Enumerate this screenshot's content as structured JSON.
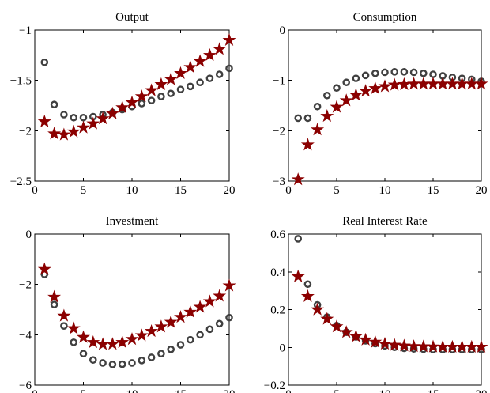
{
  "colors": {
    "circle_series": "#404040",
    "star_series": "#8b0000"
  },
  "chart_data": [
    {
      "type": "scatter",
      "title": "Output",
      "xlabel": "",
      "ylabel": "",
      "xlim": [
        0,
        20
      ],
      "ylim": [
        -2.5,
        -1
      ],
      "xticks": [
        0,
        5,
        10,
        15,
        20
      ],
      "yticks": [
        -2.5,
        -2,
        -1.5,
        -1
      ],
      "xtick_labels": [
        "0",
        "5",
        "10",
        "15",
        "20"
      ],
      "ytick_labels": [
        "−2.5",
        "−2",
        "−1.5",
        "−1"
      ],
      "grid": false,
      "x": [
        1,
        2,
        3,
        4,
        5,
        6,
        7,
        8,
        9,
        10,
        11,
        12,
        13,
        14,
        15,
        16,
        17,
        18,
        19,
        20
      ],
      "series": [
        {
          "marker": "circle",
          "values": [
            -1.32,
            -1.74,
            -1.84,
            -1.87,
            -1.87,
            -1.86,
            -1.84,
            -1.82,
            -1.79,
            -1.76,
            -1.73,
            -1.7,
            -1.66,
            -1.63,
            -1.59,
            -1.56,
            -1.52,
            -1.48,
            -1.44,
            -1.38
          ]
        },
        {
          "marker": "star",
          "values": [
            -1.91,
            -2.03,
            -2.04,
            -2.01,
            -1.97,
            -1.93,
            -1.88,
            -1.83,
            -1.77,
            -1.72,
            -1.66,
            -1.6,
            -1.54,
            -1.49,
            -1.43,
            -1.37,
            -1.31,
            -1.25,
            -1.19,
            -1.1
          ]
        }
      ]
    },
    {
      "type": "scatter",
      "title": "Consumption",
      "xlabel": "",
      "ylabel": "",
      "xlim": [
        0,
        20
      ],
      "ylim": [
        -3,
        0
      ],
      "xticks": [
        0,
        5,
        10,
        15,
        20
      ],
      "yticks": [
        -3,
        -2,
        -1,
        0
      ],
      "xtick_labels": [
        "0",
        "5",
        "10",
        "15",
        "20"
      ],
      "ytick_labels": [
        "−3",
        "−2",
        "−1",
        "0"
      ],
      "grid": false,
      "x": [
        1,
        2,
        3,
        4,
        5,
        6,
        7,
        8,
        9,
        10,
        11,
        12,
        13,
        14,
        15,
        16,
        17,
        18,
        19,
        20
      ],
      "series": [
        {
          "marker": "circle",
          "values": [
            -1.75,
            -1.75,
            -1.52,
            -1.3,
            -1.15,
            -1.04,
            -0.96,
            -0.9,
            -0.86,
            -0.84,
            -0.83,
            -0.83,
            -0.84,
            -0.86,
            -0.88,
            -0.91,
            -0.94,
            -0.96,
            -0.98,
            -1.02
          ]
        },
        {
          "marker": "star",
          "values": [
            -2.97,
            -2.28,
            -1.98,
            -1.71,
            -1.53,
            -1.4,
            -1.29,
            -1.21,
            -1.16,
            -1.12,
            -1.09,
            -1.08,
            -1.07,
            -1.07,
            -1.07,
            -1.07,
            -1.07,
            -1.07,
            -1.07,
            -1.07
          ]
        }
      ]
    },
    {
      "type": "scatter",
      "title": "Investment",
      "xlabel": "",
      "ylabel": "",
      "xlim": [
        0,
        20
      ],
      "ylim": [
        -6,
        0
      ],
      "xticks": [
        0,
        5,
        10,
        15,
        20
      ],
      "yticks": [
        -6,
        -4,
        -2,
        0
      ],
      "xtick_labels": [
        "0",
        "5",
        "10",
        "15",
        "20"
      ],
      "ytick_labels": [
        "−6",
        "−4",
        "−2",
        "0"
      ],
      "grid": false,
      "x": [
        1,
        2,
        3,
        4,
        5,
        6,
        7,
        8,
        9,
        10,
        11,
        12,
        13,
        14,
        15,
        16,
        17,
        18,
        19,
        20
      ],
      "series": [
        {
          "marker": "circle",
          "values": [
            -1.6,
            -2.8,
            -3.65,
            -4.3,
            -4.75,
            -5.0,
            -5.12,
            -5.18,
            -5.17,
            -5.12,
            -5.02,
            -4.9,
            -4.75,
            -4.58,
            -4.4,
            -4.2,
            -4.0,
            -3.78,
            -3.56,
            -3.32
          ]
        },
        {
          "marker": "star",
          "values": [
            -1.4,
            -2.5,
            -3.25,
            -3.75,
            -4.1,
            -4.3,
            -4.38,
            -4.37,
            -4.3,
            -4.18,
            -4.03,
            -3.86,
            -3.68,
            -3.5,
            -3.3,
            -3.1,
            -2.9,
            -2.68,
            -2.46,
            -2.05
          ]
        }
      ]
    },
    {
      "type": "scatter",
      "title": "Real Interest Rate",
      "xlabel": "",
      "ylabel": "",
      "xlim": [
        0,
        20
      ],
      "ylim": [
        -0.2,
        0.6
      ],
      "xticks": [
        0,
        5,
        10,
        15,
        20
      ],
      "yticks": [
        -0.2,
        0,
        0.2,
        0.4,
        0.6
      ],
      "xtick_labels": [
        "0",
        "5",
        "10",
        "15",
        "20"
      ],
      "ytick_labels": [
        "−0.2",
        "0",
        "0.2",
        "0.4",
        "0.6"
      ],
      "grid": false,
      "x": [
        1,
        2,
        3,
        4,
        5,
        6,
        7,
        8,
        9,
        10,
        11,
        12,
        13,
        14,
        15,
        16,
        17,
        18,
        19,
        20
      ],
      "series": [
        {
          "marker": "circle",
          "values": [
            0.575,
            0.335,
            0.225,
            0.16,
            0.115,
            0.08,
            0.055,
            0.035,
            0.02,
            0.008,
            0.0,
            -0.005,
            -0.008,
            -0.01,
            -0.012,
            -0.012,
            -0.012,
            -0.012,
            -0.012,
            -0.012
          ]
        },
        {
          "marker": "star",
          "values": [
            0.375,
            0.27,
            0.2,
            0.15,
            0.11,
            0.08,
            0.058,
            0.04,
            0.028,
            0.018,
            0.012,
            0.008,
            0.005,
            0.004,
            0.003,
            0.002,
            0.002,
            0.002,
            0.002,
            0.002
          ]
        }
      ]
    }
  ]
}
